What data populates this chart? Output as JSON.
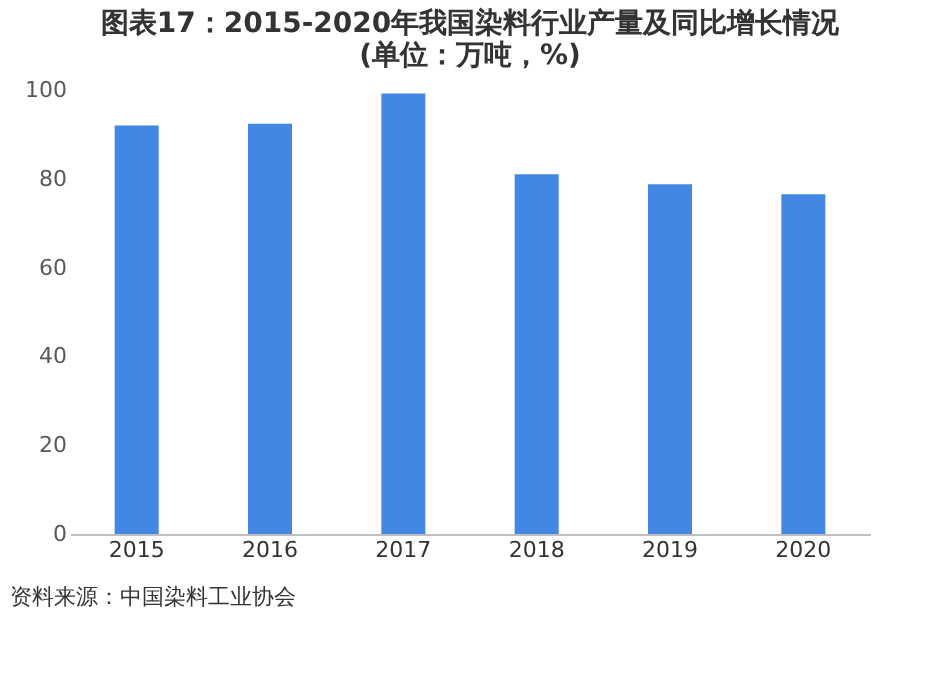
{
  "chart_data": {
    "type": "bar",
    "title": [
      "图表17：2015-2020年我国染料行业产量及同比增长情况",
      "(单位：万吨，%)"
    ],
    "categories": [
      "2015",
      "2016",
      "2017",
      "2018",
      "2019",
      "2020"
    ],
    "values": [
      92.0,
      92.4,
      99.2,
      81.0,
      78.8,
      76.5
    ],
    "color": "#4287e4",
    "ylim": [
      0,
      100
    ],
    "yticks": [
      0,
      20,
      40,
      60,
      80,
      100
    ],
    "grid": false,
    "annotations": [
      "资料来源：中国染料工业协会"
    ]
  }
}
